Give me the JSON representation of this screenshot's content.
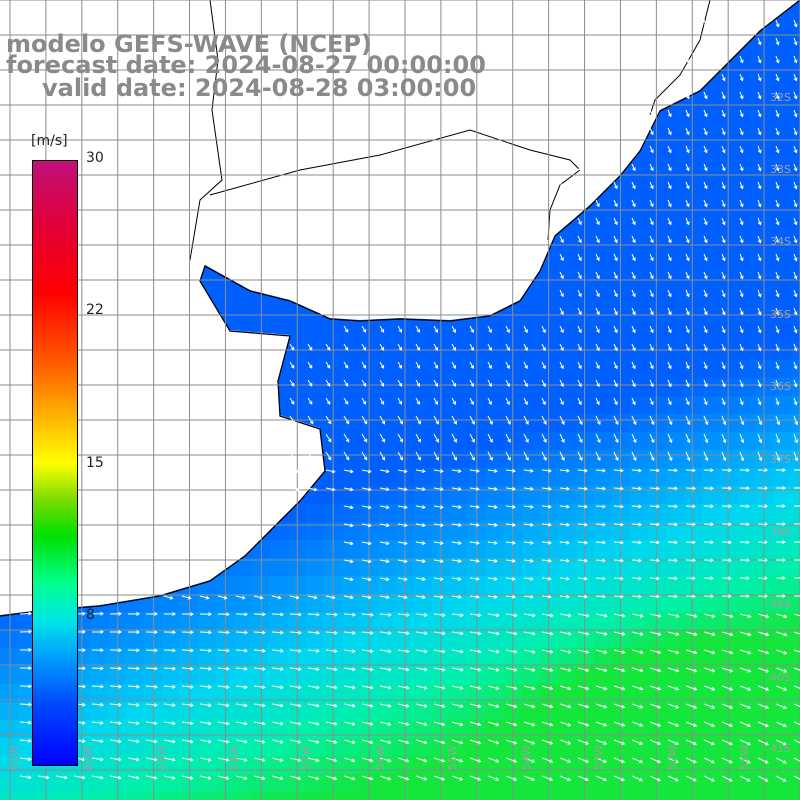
{
  "title": {
    "model": "modelo GEFS-WAVE (NCEP)",
    "forecast_date": "forecast date: 2024-08-27 00:00:00",
    "valid_date": "valid date: 2024-08-28 03:00:00"
  },
  "colorbar": {
    "unit": "[m/s]",
    "ticks": [
      {
        "value": 30,
        "label": "30"
      },
      {
        "value": 22,
        "label": "22"
      },
      {
        "value": 15,
        "label": "15"
      },
      {
        "value": 8,
        "label": "8"
      }
    ],
    "range": [
      0,
      30
    ]
  },
  "map": {
    "lat_range": [
      -30,
      -41
    ],
    "lon_range": [
      -61,
      -50
    ],
    "lat_labels": [
      {
        "lat": -32,
        "label": "32S"
      },
      {
        "lat": -33,
        "label": "33S"
      },
      {
        "lat": -34,
        "label": "34S"
      },
      {
        "lat": -35,
        "label": "35S"
      },
      {
        "lat": -36,
        "label": "36S"
      },
      {
        "lat": -37,
        "label": "37S"
      },
      {
        "lat": -38,
        "label": "38S"
      },
      {
        "lat": -39,
        "label": "39S"
      },
      {
        "lat": -40,
        "label": "40S"
      },
      {
        "lat": -41,
        "label": "41S"
      }
    ],
    "lon_labels": [
      {
        "lon": -61,
        "label": "61W"
      },
      {
        "lon": -60,
        "label": "60W"
      },
      {
        "lon": -59,
        "label": "59W"
      },
      {
        "lon": -58,
        "label": "58W"
      },
      {
        "lon": -57,
        "label": "57W"
      },
      {
        "lon": -56,
        "label": "56W"
      },
      {
        "lon": -55,
        "label": "55W"
      },
      {
        "lon": -54,
        "label": "54W"
      },
      {
        "lon": -53,
        "label": "53W"
      },
      {
        "lon": -52,
        "label": "52W"
      },
      {
        "lon": -51,
        "label": "51W"
      }
    ],
    "colors": {
      "land": "#ffffff",
      "coast": "#000000",
      "grid": "#8c8c8c",
      "arrow": "#ffffff"
    }
  }
}
